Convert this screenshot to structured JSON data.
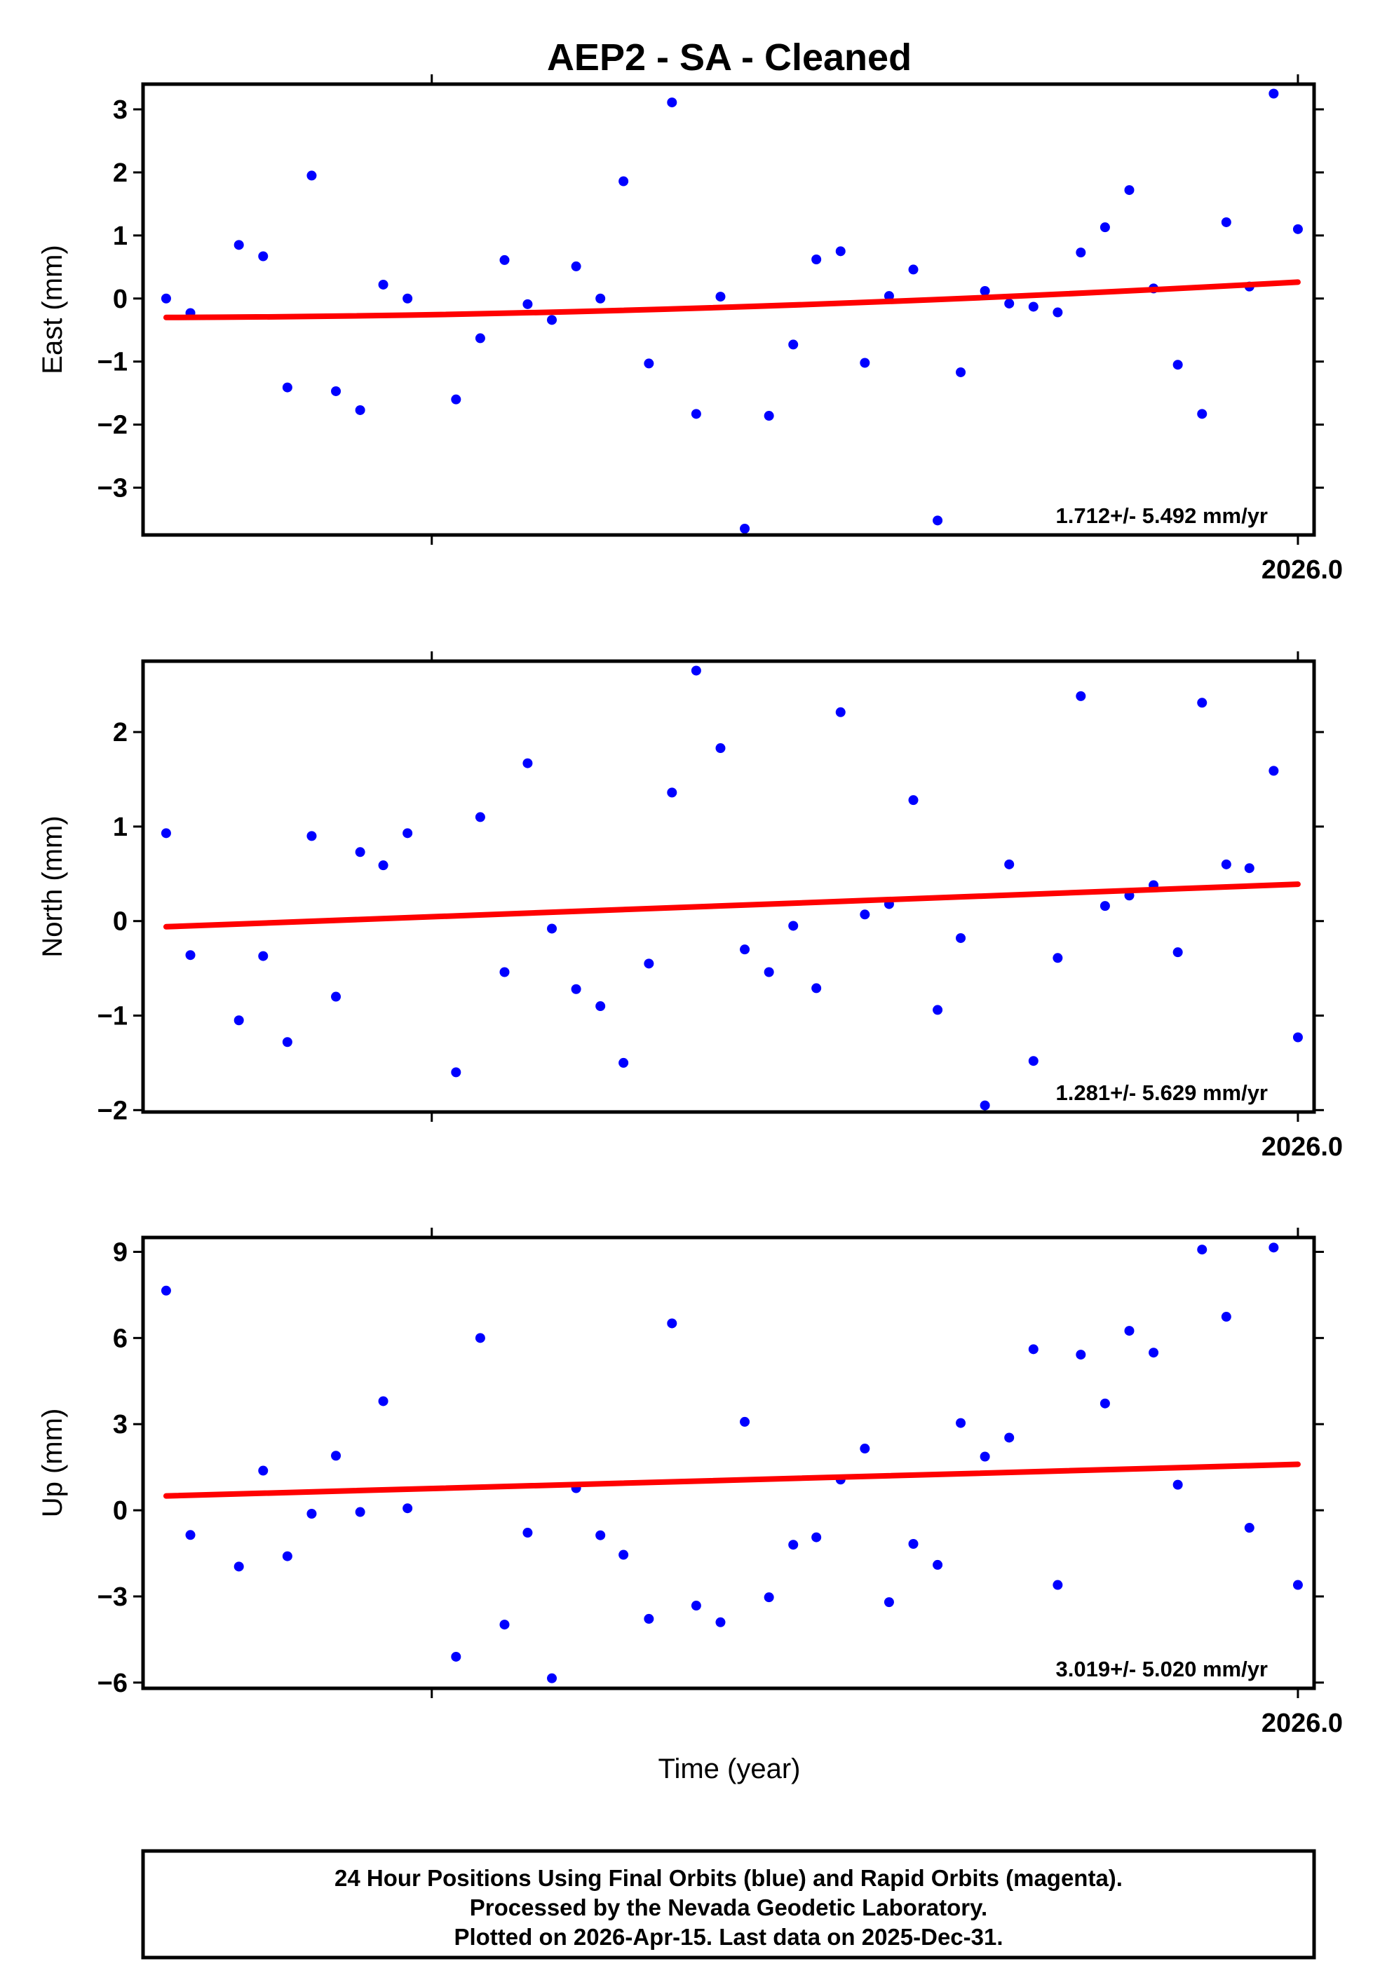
{
  "title": "AEP2  - SA - Cleaned",
  "xlabel": "Time (year)",
  "caption": [
    "24 Hour Positions Using Final Orbits (blue) and Rapid Orbits (magenta).",
    "Processed by the Nevada Geodetic Laboratory.",
    "Plotted on 2026-Apr-15. Last data on 2025-Dec-31."
  ],
  "colors": {
    "points": "#0000ff",
    "trend": "#ff0000",
    "frame": "#000000"
  },
  "chart_data": [
    {
      "type": "scatter",
      "ylabel": "East (mm)",
      "ylim": [
        -3.75,
        3.4
      ],
      "yticks": [
        -3,
        -2,
        -1,
        0,
        1,
        2,
        3
      ],
      "xlim": [
        2025.0,
        2026.014
      ],
      "xticks": [
        2025.25,
        2026.0
      ],
      "xtick_labels": [
        "",
        "2026.0"
      ],
      "rate": "1.712+/- 5.492 mm/yr",
      "trend": {
        "x": [
          2025.02,
          2026.0
        ],
        "y": [
          -0.3,
          0.26
        ],
        "curved": true
      },
      "x": [
        2025.02,
        2025.041,
        2025.083,
        2025.104,
        2025.125,
        2025.146,
        2025.167,
        2025.188,
        2025.208,
        2025.229,
        2025.271,
        2025.292,
        2025.313,
        2025.333,
        2025.354,
        2025.375,
        2025.396,
        2025.416,
        2025.438,
        2025.458,
        2025.479,
        2025.5,
        2025.521,
        2025.542,
        2025.563,
        2025.583,
        2025.604,
        2025.625,
        2025.646,
        2025.667,
        2025.688,
        2025.708,
        2025.729,
        2025.75,
        2025.771,
        2025.792,
        2025.812,
        2025.833,
        2025.854,
        2025.875,
        2025.896,
        2025.917,
        2025.938,
        2025.958,
        2025.979,
        2026.0
      ],
      "y": [
        0.0,
        -0.23,
        0.85,
        0.67,
        -1.41,
        1.95,
        -1.47,
        -1.77,
        0.22,
        0.0,
        -1.6,
        -0.63,
        0.61,
        -0.09,
        -0.34,
        0.51,
        0.0,
        1.86,
        -1.03,
        3.11,
        -1.83,
        0.03,
        -3.65,
        -1.86,
        -0.73,
        0.62,
        0.75,
        -1.02,
        0.04,
        0.46,
        -3.52,
        -1.17,
        0.12,
        -0.08,
        -0.13,
        -0.22,
        0.73,
        1.13,
        1.72,
        0.16,
        -1.05,
        -1.83,
        1.21,
        0.19,
        3.25,
        1.1
      ]
    },
    {
      "type": "scatter",
      "ylabel": "North (mm)",
      "ylim": [
        -2.02,
        2.75
      ],
      "yticks": [
        -2,
        -1,
        0,
        1,
        2
      ],
      "xlim": [
        2025.0,
        2026.014
      ],
      "xticks": [
        2025.25,
        2026.0
      ],
      "xtick_labels": [
        "",
        "2026.0"
      ],
      "rate": "1.281+/- 5.629 mm/yr",
      "trend": {
        "x": [
          2025.02,
          2026.0
        ],
        "y": [
          -0.06,
          0.39
        ],
        "curved": false
      },
      "x": [
        2025.02,
        2025.041,
        2025.083,
        2025.104,
        2025.125,
        2025.146,
        2025.167,
        2025.188,
        2025.208,
        2025.229,
        2025.271,
        2025.292,
        2025.313,
        2025.333,
        2025.354,
        2025.375,
        2025.396,
        2025.416,
        2025.438,
        2025.458,
        2025.479,
        2025.5,
        2025.521,
        2025.542,
        2025.563,
        2025.583,
        2025.604,
        2025.625,
        2025.646,
        2025.667,
        2025.688,
        2025.708,
        2025.729,
        2025.75,
        2025.771,
        2025.792,
        2025.812,
        2025.833,
        2025.854,
        2025.875,
        2025.896,
        2025.917,
        2025.938,
        2025.958,
        2025.979,
        2026.0
      ],
      "y": [
        0.93,
        -0.36,
        -1.05,
        -0.37,
        -1.28,
        0.9,
        -0.8,
        0.73,
        0.59,
        0.93,
        -1.6,
        1.1,
        -0.54,
        1.67,
        -0.08,
        -0.72,
        -0.9,
        -1.5,
        -0.45,
        1.36,
        2.65,
        1.83,
        -0.3,
        -0.54,
        -0.05,
        -0.71,
        2.21,
        0.07,
        0.18,
        1.28,
        -0.94,
        -0.18,
        -1.95,
        0.6,
        -1.48,
        -0.39,
        2.38,
        0.16,
        0.27,
        0.38,
        -0.33,
        2.31,
        0.6,
        0.56,
        1.59,
        -1.23
      ]
    },
    {
      "type": "scatter",
      "ylabel": "Up (mm)",
      "ylim": [
        -6.2,
        9.5
      ],
      "yticks": [
        -6,
        -3,
        0,
        3,
        6,
        9
      ],
      "xlim": [
        2025.0,
        2026.014
      ],
      "xticks": [
        2025.25,
        2026.0
      ],
      "xtick_labels": [
        "",
        "2026.0"
      ],
      "rate": "3.019+/- 5.020 mm/yr",
      "trend": {
        "x": [
          2025.02,
          2026.0
        ],
        "y": [
          0.5,
          1.6
        ],
        "curved": false
      },
      "x": [
        2025.02,
        2025.041,
        2025.083,
        2025.104,
        2025.125,
        2025.146,
        2025.167,
        2025.188,
        2025.208,
        2025.229,
        2025.271,
        2025.292,
        2025.313,
        2025.333,
        2025.354,
        2025.375,
        2025.396,
        2025.416,
        2025.438,
        2025.458,
        2025.479,
        2025.5,
        2025.521,
        2025.542,
        2025.563,
        2025.583,
        2025.604,
        2025.625,
        2025.646,
        2025.667,
        2025.688,
        2025.708,
        2025.729,
        2025.75,
        2025.771,
        2025.792,
        2025.812,
        2025.833,
        2025.854,
        2025.875,
        2025.896,
        2025.917,
        2025.938,
        2025.958,
        2025.979,
        2026.0
      ],
      "y": [
        7.65,
        -0.86,
        -1.96,
        1.38,
        -1.6,
        -0.12,
        1.9,
        -0.06,
        3.8,
        0.07,
        -5.1,
        6.0,
        -3.98,
        -0.78,
        -5.85,
        0.77,
        -0.87,
        -1.55,
        -3.78,
        6.51,
        -3.32,
        -3.9,
        3.08,
        -3.03,
        -1.2,
        -0.94,
        1.07,
        2.15,
        -3.2,
        -1.17,
        -1.9,
        3.04,
        1.87,
        2.53,
        5.61,
        -2.6,
        5.42,
        3.72,
        6.25,
        5.49,
        0.89,
        9.08,
        6.74,
        -0.61,
        9.15,
        -2.6
      ]
    }
  ]
}
